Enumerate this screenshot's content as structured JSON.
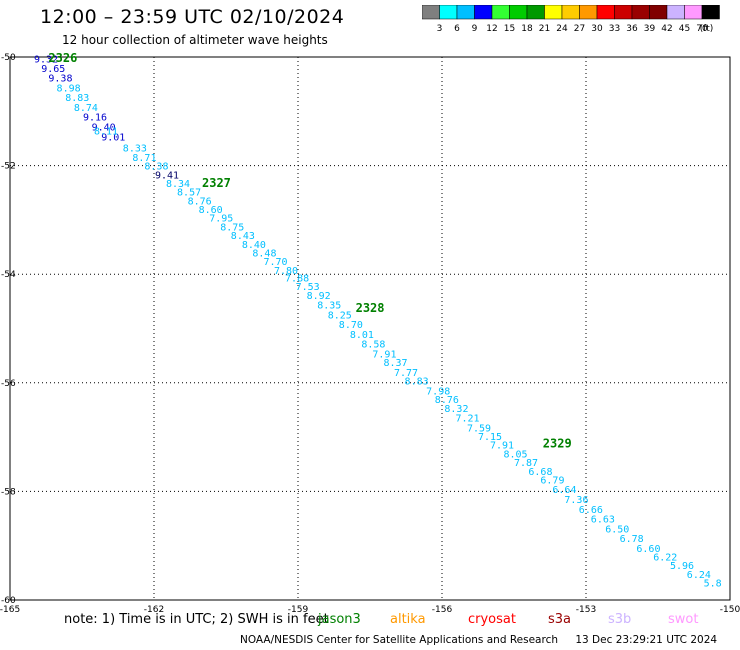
{
  "header": {
    "title": "12:00 – 23:59 UTC 02/10/2024",
    "subtitle": "12 hour collection of altimeter wave heights"
  },
  "colorbar": {
    "unit_label": "(ft)",
    "colors": [
      "#7f7f7f",
      "#00ffff",
      "#00bfff",
      "#0000ff",
      "#33ff33",
      "#00cc00",
      "#009900",
      "#ffff00",
      "#ffcc00",
      "#ff9900",
      "#ff0000",
      "#cc0000",
      "#990000",
      "#800000",
      "#ccb3ff",
      "#ff99ff",
      "#000000"
    ],
    "labels": [
      "3",
      "6",
      "9",
      "12",
      "15",
      "18",
      "21",
      "24",
      "27",
      "30",
      "33",
      "36",
      "39",
      "42",
      "45",
      "70"
    ]
  },
  "map": {
    "lon_labels": [
      "-165",
      "-162",
      "-159",
      "-156",
      "-153",
      "-150"
    ],
    "lat_labels": [
      "-50",
      "-52",
      "-54",
      "-56",
      "-58",
      "-60"
    ],
    "lon_range": [
      -165,
      -150
    ],
    "lat_range": [
      -50,
      -60
    ],
    "pass_labels": [
      {
        "text": "2326",
        "lon": -164.2,
        "lat": -50.0
      },
      {
        "text": "2327",
        "lon": -161.0,
        "lat": -52.3
      },
      {
        "text": "2328",
        "lon": -157.8,
        "lat": -54.6
      },
      {
        "text": "2329",
        "lon": -153.9,
        "lat": -57.1
      }
    ],
    "observations": [
      {
        "v": "9.32",
        "lon": -164.5,
        "lat": -50.03,
        "c": "#0000cc"
      },
      {
        "v": "9.65",
        "lon": -164.35,
        "lat": -50.2,
        "c": "#0000cc"
      },
      {
        "v": "9.38",
        "lon": -164.2,
        "lat": -50.38,
        "c": "#0000cc"
      },
      {
        "v": "8.98",
        "lon": -164.03,
        "lat": -50.56,
        "c": "#00bfff"
      },
      {
        "v": "8.83",
        "lon": -163.85,
        "lat": -50.74,
        "c": "#00bfff"
      },
      {
        "v": "8.74",
        "lon": -163.67,
        "lat": -50.92,
        "c": "#00bfff"
      },
      {
        "v": "9.16",
        "lon": -163.48,
        "lat": -51.1,
        "c": "#0000cc"
      },
      {
        "v": "9.40",
        "lon": -163.3,
        "lat": -51.28,
        "c": "#0000cc"
      },
      {
        "v": "9.01",
        "lon": -163.1,
        "lat": -51.46,
        "c": "#0000cc"
      },
      {
        "v": "8.11",
        "lon": -163.25,
        "lat": -51.35,
        "c": "#00bfff"
      },
      {
        "v": "8.33",
        "lon": -162.65,
        "lat": -51.67,
        "c": "#00bfff"
      },
      {
        "v": "8.71",
        "lon": -162.45,
        "lat": -51.84,
        "c": "#00bfff"
      },
      {
        "v": "8.38",
        "lon": -162.2,
        "lat": -52.0,
        "c": "#00bfff"
      },
      {
        "v": "9.41",
        "lon": -161.98,
        "lat": -52.16,
        "c": "#000066"
      },
      {
        "v": "8.34",
        "lon": -161.75,
        "lat": -52.32,
        "c": "#00bfff"
      },
      {
        "v": "8.57",
        "lon": -161.52,
        "lat": -52.48,
        "c": "#00bfff"
      },
      {
        "v": "8.76",
        "lon": -161.3,
        "lat": -52.64,
        "c": "#00bfff"
      },
      {
        "v": "8.60",
        "lon": -161.07,
        "lat": -52.8,
        "c": "#00bfff"
      },
      {
        "v": "7.95",
        "lon": -160.85,
        "lat": -52.96,
        "c": "#00bfff"
      },
      {
        "v": "8.75",
        "lon": -160.62,
        "lat": -53.12,
        "c": "#00bfff"
      },
      {
        "v": "8.43",
        "lon": -160.4,
        "lat": -53.28,
        "c": "#00bfff"
      },
      {
        "v": "8.40",
        "lon": -160.17,
        "lat": -53.44,
        "c": "#00bfff"
      },
      {
        "v": "8.48",
        "lon": -159.95,
        "lat": -53.6,
        "c": "#00bfff"
      },
      {
        "v": "7.70",
        "lon": -159.72,
        "lat": -53.76,
        "c": "#00bfff"
      },
      {
        "v": "7.80",
        "lon": -159.5,
        "lat": -53.92,
        "c": "#00bfff"
      },
      {
        "v": "7.88",
        "lon": -159.27,
        "lat": -54.06,
        "c": "#00bfff"
      },
      {
        "v": "7.53",
        "lon": -159.05,
        "lat": -54.22,
        "c": "#00bfff"
      },
      {
        "v": "8.92",
        "lon": -158.82,
        "lat": -54.38,
        "c": "#00bfff"
      },
      {
        "v": "8.35",
        "lon": -158.6,
        "lat": -54.56,
        "c": "#00bfff"
      },
      {
        "v": "8.25",
        "lon": -158.38,
        "lat": -54.74,
        "c": "#00bfff"
      },
      {
        "v": "8.70",
        "lon": -158.15,
        "lat": -54.92,
        "c": "#00bfff"
      },
      {
        "v": "8.01",
        "lon": -157.92,
        "lat": -55.1,
        "c": "#00bfff"
      },
      {
        "v": "8.58",
        "lon": -157.68,
        "lat": -55.28,
        "c": "#00bfff"
      },
      {
        "v": "7.91",
        "lon": -157.45,
        "lat": -55.46,
        "c": "#00bfff"
      },
      {
        "v": "8.37",
        "lon": -157.22,
        "lat": -55.62,
        "c": "#00bfff"
      },
      {
        "v": "7.77",
        "lon": -157.0,
        "lat": -55.8,
        "c": "#00bfff"
      },
      {
        "v": "8.83",
        "lon": -156.78,
        "lat": -55.96,
        "c": "#00bfff"
      },
      {
        "v": "7.98",
        "lon": -156.33,
        "lat": -56.14,
        "c": "#00bfff"
      },
      {
        "v": "8.76",
        "lon": -156.15,
        "lat": -56.3,
        "c": "#00bfff"
      },
      {
        "v": "8.32",
        "lon": -155.95,
        "lat": -56.46,
        "c": "#00bfff"
      },
      {
        "v": "7.21",
        "lon": -155.72,
        "lat": -56.64,
        "c": "#00bfff"
      },
      {
        "v": "7.59",
        "lon": -155.48,
        "lat": -56.82,
        "c": "#00bfff"
      },
      {
        "v": "7.15",
        "lon": -155.25,
        "lat": -56.98,
        "c": "#00bfff"
      },
      {
        "v": "7.91",
        "lon": -155.0,
        "lat": -57.14,
        "c": "#00bfff"
      },
      {
        "v": "8.05",
        "lon": -154.72,
        "lat": -57.3,
        "c": "#00bfff"
      },
      {
        "v": "7.87",
        "lon": -154.5,
        "lat": -57.46,
        "c": "#00bfff"
      },
      {
        "v": "6.68",
        "lon": -154.2,
        "lat": -57.62,
        "c": "#00bfff"
      },
      {
        "v": "6.79",
        "lon": -153.95,
        "lat": -57.78,
        "c": "#00bfff"
      },
      {
        "v": "6.64",
        "lon": -153.7,
        "lat": -57.96,
        "c": "#00bfff"
      },
      {
        "v": "7.36",
        "lon": -153.45,
        "lat": -58.14,
        "c": "#00bfff"
      },
      {
        "v": "6.66",
        "lon": -153.15,
        "lat": -58.32,
        "c": "#00bfff"
      },
      {
        "v": "6.63",
        "lon": -152.9,
        "lat": -58.5,
        "c": "#00bfff"
      },
      {
        "v": "6.50",
        "lon": -152.6,
        "lat": -58.68,
        "c": "#00bfff"
      },
      {
        "v": "6.78",
        "lon": -152.3,
        "lat": -58.86,
        "c": "#00bfff"
      },
      {
        "v": "6.60",
        "lon": -151.95,
        "lat": -59.04,
        "c": "#00bfff"
      },
      {
        "v": "6.22",
        "lon": -151.6,
        "lat": -59.2,
        "c": "#00bfff"
      },
      {
        "v": "5.96",
        "lon": -151.25,
        "lat": -59.36,
        "c": "#00bfff"
      },
      {
        "v": "6.24",
        "lon": -150.9,
        "lat": -59.52,
        "c": "#00bfff"
      },
      {
        "v": "5.8",
        "lon": -150.55,
        "lat": -59.68,
        "c": "#00bfff"
      }
    ]
  },
  "note": "note:  1) Time is in UTC; 2) SWH is in feet",
  "satellites": [
    {
      "name": "jason3",
      "color": "#008000"
    },
    {
      "name": "altika",
      "color": "#ff9900"
    },
    {
      "name": "cryosat",
      "color": "#ff0000"
    },
    {
      "name": "s3a",
      "color": "#990000"
    },
    {
      "name": "s3b",
      "color": "#ccb3ff"
    },
    {
      "name": "swot",
      "color": "#ff99ff"
    }
  ],
  "footer": {
    "credit": "NOAA/NESDIS Center for Satellite Applications and Research",
    "timestamp": "13 Dec 23:29:21 UTC 2024"
  }
}
